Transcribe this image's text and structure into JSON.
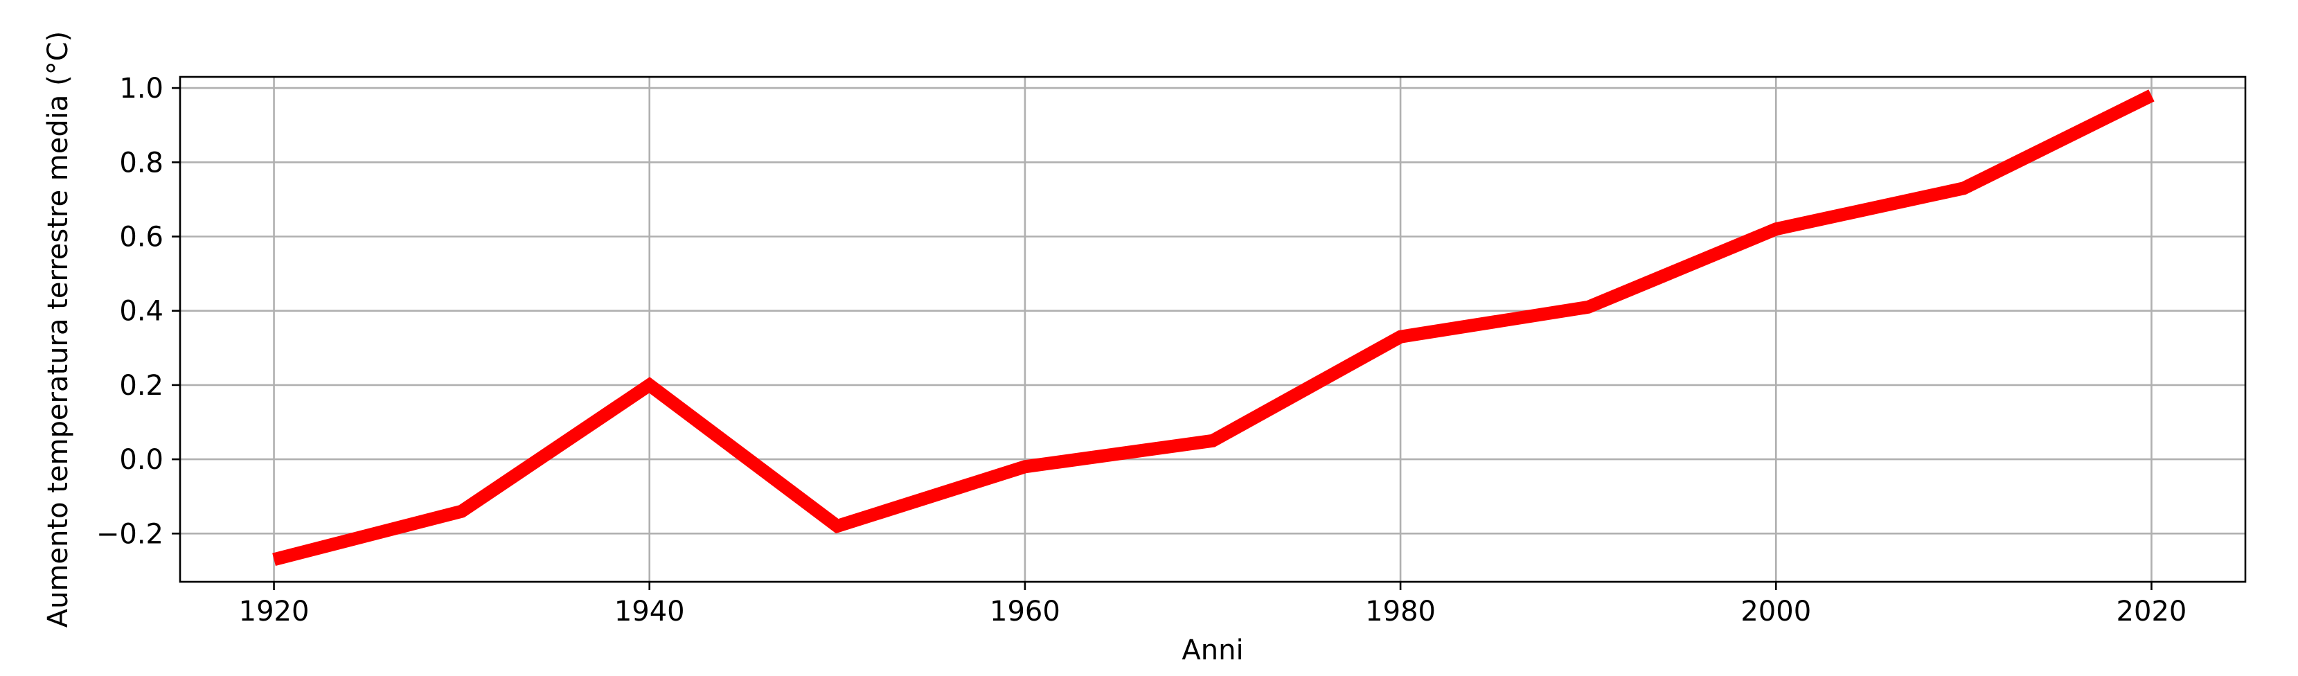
{
  "chart_data": {
    "type": "line",
    "title": "",
    "xlabel": "Anni",
    "ylabel": "Aumento temperatura terrestre media (°C)",
    "x": [
      1920,
      1930,
      1940,
      1950,
      1960,
      1970,
      1980,
      1990,
      2000,
      2010,
      2020
    ],
    "series": [
      {
        "values": [
          -0.27,
          -0.14,
          0.2,
          -0.18,
          -0.02,
          0.05,
          0.33,
          0.41,
          0.62,
          0.73,
          0.98
        ],
        "color": "#ff0000"
      }
    ],
    "xlim": [
      1915,
      2025
    ],
    "ylim": [
      -0.33,
      1.03
    ],
    "xticks": [
      1920,
      1940,
      1960,
      1980,
      2000,
      2020
    ],
    "yticks": [
      -0.2,
      0.0,
      0.2,
      0.4,
      0.6,
      0.8,
      1.0
    ],
    "ytick_labels": [
      "−0.2",
      "0.0",
      "0.2",
      "0.4",
      "0.6",
      "0.8",
      "1.0"
    ],
    "grid": true
  }
}
